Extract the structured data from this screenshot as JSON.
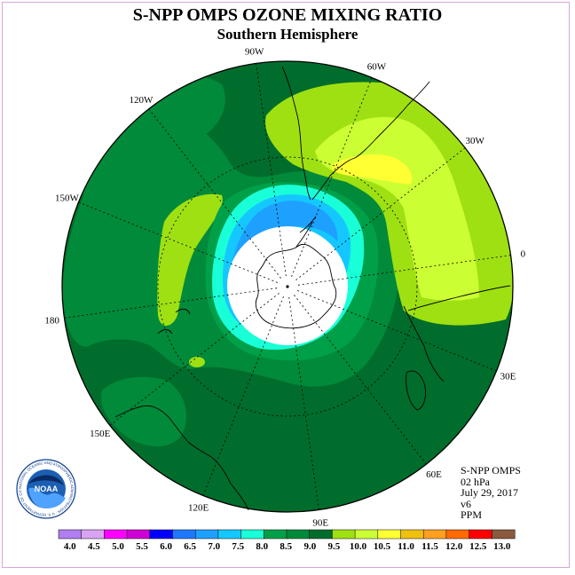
{
  "header": {
    "title": "S-NPP OMPS OZONE MIXING RATIO",
    "subtitle": "Southern Hemisphere"
  },
  "map": {
    "projection": "south-polar-stereographic",
    "longitude_labels": [
      {
        "text": "0",
        "lon": 0
      },
      {
        "text": "30E",
        "lon": 30
      },
      {
        "text": "60E",
        "lon": 60
      },
      {
        "text": "90E",
        "lon": 90
      },
      {
        "text": "120E",
        "lon": 120
      },
      {
        "text": "150E",
        "lon": 150
      },
      {
        "text": "180",
        "lon": 180
      },
      {
        "text": "150W",
        "lon": -150
      },
      {
        "text": "120W",
        "lon": -120
      },
      {
        "text": "90W",
        "lon": -90
      },
      {
        "text": "60W",
        "lon": -60
      },
      {
        "text": "30W",
        "lon": -30
      }
    ],
    "graticule_latitudes": [
      -30,
      -60
    ],
    "background_level": "8.5",
    "polar_night_gap": true
  },
  "info": {
    "instrument": "S-NPP OMPS",
    "pressure": "02 hPa",
    "date": "July 29, 2017",
    "version": "v6",
    "units": "PPM"
  },
  "logo": {
    "text": "NOAA",
    "ring_text": "NATIONAL OCEANIC AND ATMOSPHERIC ADMINISTRATION · U.S. DEPARTMENT OF COMMERCE"
  },
  "colorbar": {
    "colors": [
      "#b07ef0",
      "#d9a3f2",
      "#ff00ff",
      "#d000d8",
      "#0000ff",
      "#1e78ff",
      "#1ea0ff",
      "#14c8ff",
      "#19ffd7",
      "#00a048",
      "#008a3a",
      "#006d2c",
      "#9fe012",
      "#ccff33",
      "#ffff33",
      "#f0c00f",
      "#ffa020",
      "#ff6a00",
      "#ff0000",
      "#8b5a3c"
    ],
    "labels": [
      "4.0",
      "4.5",
      "5.0",
      "5.5",
      "6.0",
      "6.5",
      "7.0",
      "7.5",
      "8.0",
      "8.5",
      "9.0",
      "9.5",
      "10.0",
      "10.5",
      "11.0",
      "11.5",
      "12.0",
      "12.5",
      "13.0"
    ]
  }
}
